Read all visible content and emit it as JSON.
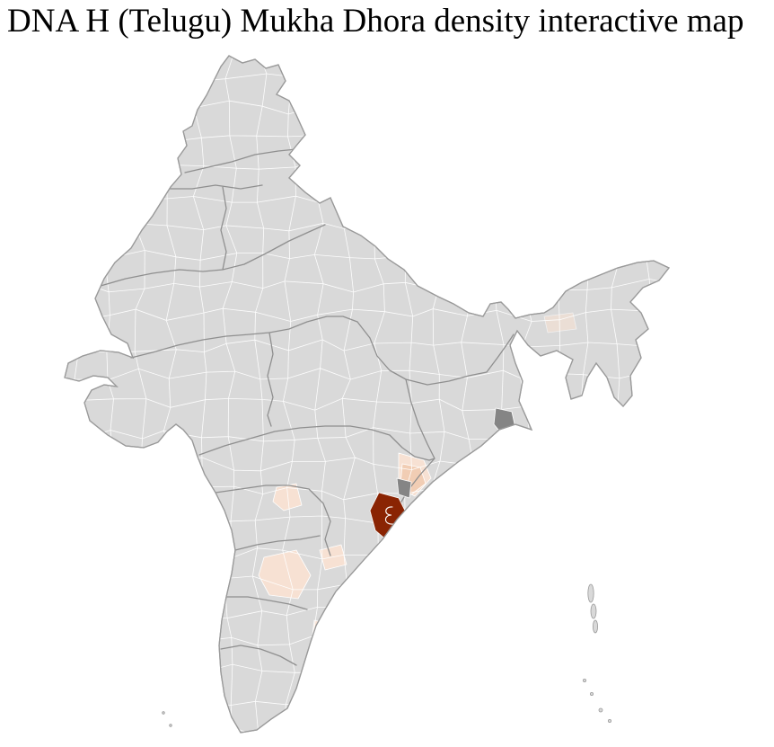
{
  "title": "DNA H (Telugu) Mukha Dhora density interactive map",
  "map": {
    "country": "India",
    "palette": {
      "background": "#ffffff",
      "land": "#d9d9d9",
      "district_border": "#ffffff",
      "state_border": "#8f8f8f",
      "country_outline": "#9a9a9a",
      "high": "#8a2403",
      "low_mid": "#f1cdb4",
      "low": "#f7e1d3",
      "neutral_dark": "#858585"
    },
    "hotspots": [
      {
        "position": "andhra-odisha-border-coast",
        "level": "high"
      },
      {
        "position": "south-odisha-interior",
        "level": "low_mid"
      },
      {
        "position": "coastal-andhra-strip",
        "level": "low"
      },
      {
        "position": "telangana-district",
        "level": "low"
      },
      {
        "position": "rayalaseema-cluster",
        "level": "low"
      },
      {
        "position": "nellore-area-district",
        "level": "low"
      },
      {
        "position": "south-coastal-district",
        "level": "low"
      },
      {
        "position": "assam-district",
        "level": "low"
      },
      {
        "position": "kolkata-district",
        "level": "neutral_dark"
      },
      {
        "position": "district-northeast-of-primary",
        "level": "neutral_dark"
      }
    ]
  }
}
